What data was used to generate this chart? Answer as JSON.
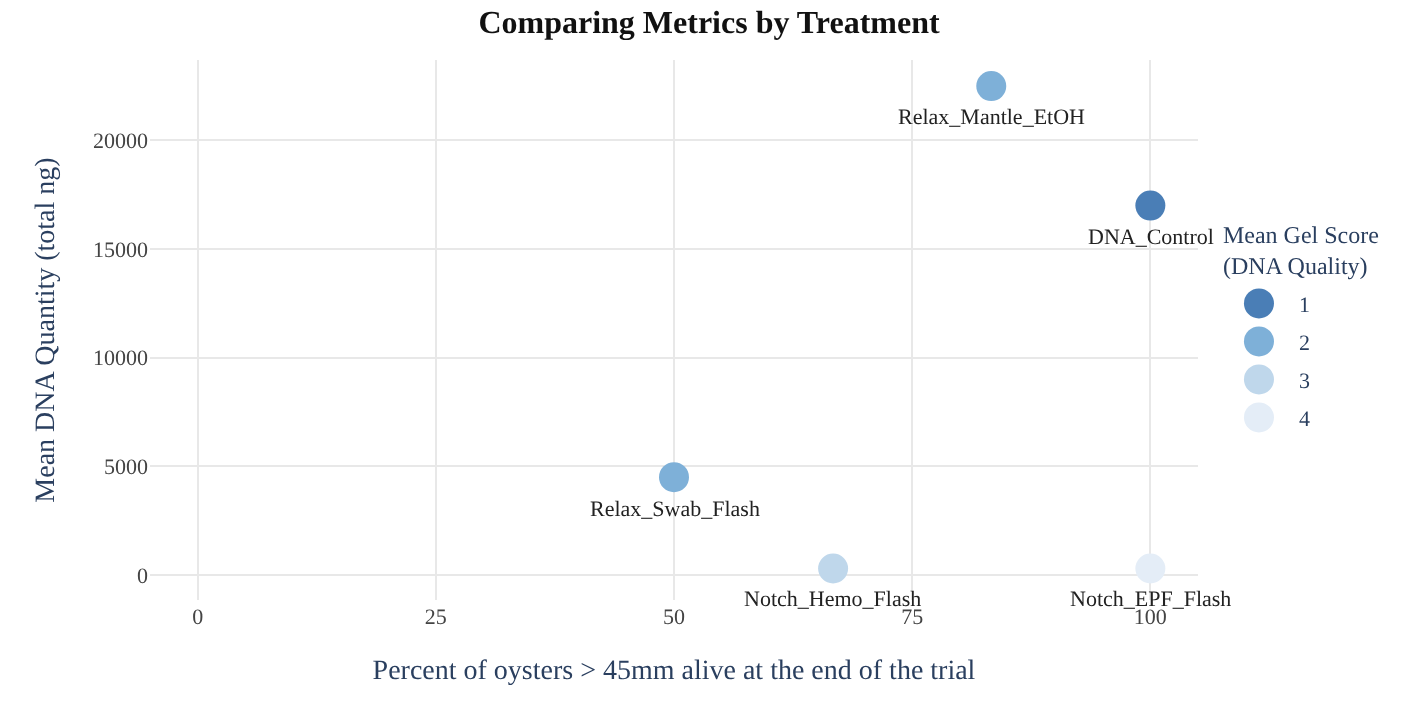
{
  "chart_data": {
    "type": "scatter",
    "title": "Comparing Metrics by Treatment",
    "xlabel": "Percent of oysters > 45mm alive at the end of the trial",
    "ylabel": "Mean DNA Quantity (total ng)",
    "legend_title": "Mean Gel Score\n(DNA Quality)",
    "series": [
      {
        "name": "1",
        "color": "#4a7eb6",
        "x": [
          100
        ],
        "values": [
          17000
        ]
      },
      {
        "name": "2",
        "color": "#7eb0d8",
        "x": [
          83.3,
          50
        ],
        "values": [
          22500,
          4500
        ]
      },
      {
        "name": "3",
        "color": "#bfd7eb",
        "x": [
          66.7
        ],
        "values": [
          300
        ]
      },
      {
        "name": "4",
        "color": "#e4edf7",
        "x": [
          100
        ],
        "values": [
          300
        ]
      }
    ],
    "annotations": [
      {
        "text": "Relax_Mantle_EtOH",
        "x": 83.3,
        "y": 22500
      },
      {
        "text": "DNA_Control",
        "x": 100,
        "y": 17000
      },
      {
        "text": "Relax_Swab_Flash",
        "x": 50,
        "y": 4500
      },
      {
        "text": "Notch_Hemo_Flash",
        "x": 66.7,
        "y": 300
      },
      {
        "text": "Notch_EPF_Flash",
        "x": 100,
        "y": 300
      }
    ],
    "xlim": [
      -5,
      105
    ],
    "xticks": [
      0,
      25,
      50,
      75,
      100
    ],
    "ylim": [
      -1150,
      23700
    ],
    "yticks": [
      0,
      5000,
      10000,
      15000,
      20000
    ],
    "grid": true,
    "legend": "right",
    "marker": "circle"
  }
}
